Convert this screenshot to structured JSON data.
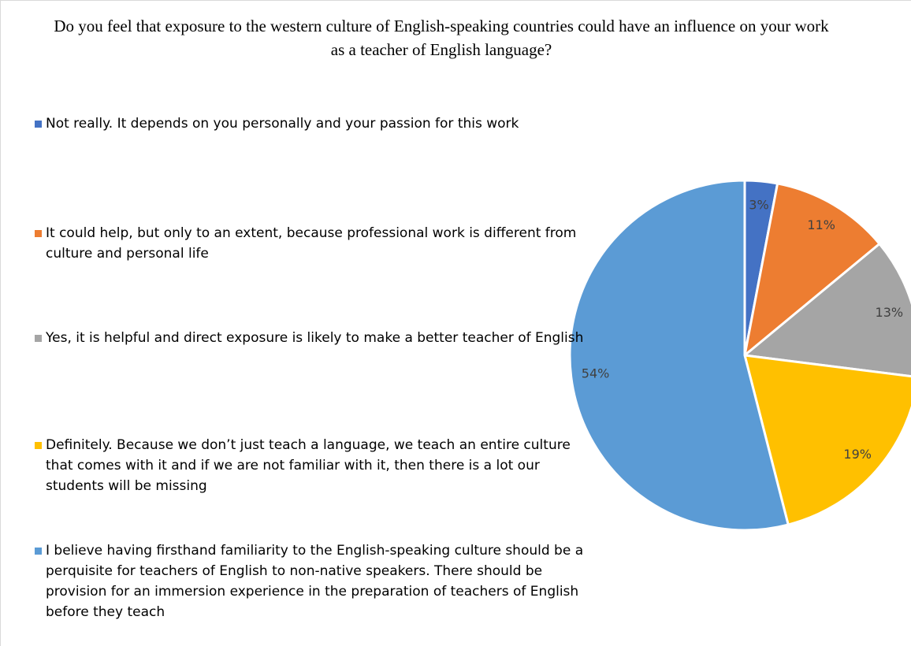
{
  "chart_data": {
    "type": "pie",
    "title": "Do you feel that exposure to the western culture of English-speaking countries could have an influence on your work as a teacher of English language?",
    "categories": [
      "Not really. It depends on you personally and your passion for this work",
      "It could help, but only to an extent, because professional work is different from culture and personal life",
      "Yes, it is helpful and direct exposure is likely to make a better teacher of English",
      "Definitely. Because we don’t just teach a language, we teach an entire culture that comes with it and if we are not familiar with it, then there is a lot our students will be missing",
      "I believe having firsthand familiarity to the English-speaking culture should be a perquisite for teachers of English to non-native speakers. There should be provision for an immersion experience in the preparation of teachers of English before they teach"
    ],
    "values": [
      3,
      11,
      13,
      19,
      54
    ],
    "value_labels": [
      "3%",
      "11%",
      "13%",
      "19%",
      "54%"
    ],
    "colors": [
      "#4472c4",
      "#ed7d31",
      "#a5a5a5",
      "#ffc000",
      "#5b9bd5"
    ],
    "legend": "left"
  }
}
